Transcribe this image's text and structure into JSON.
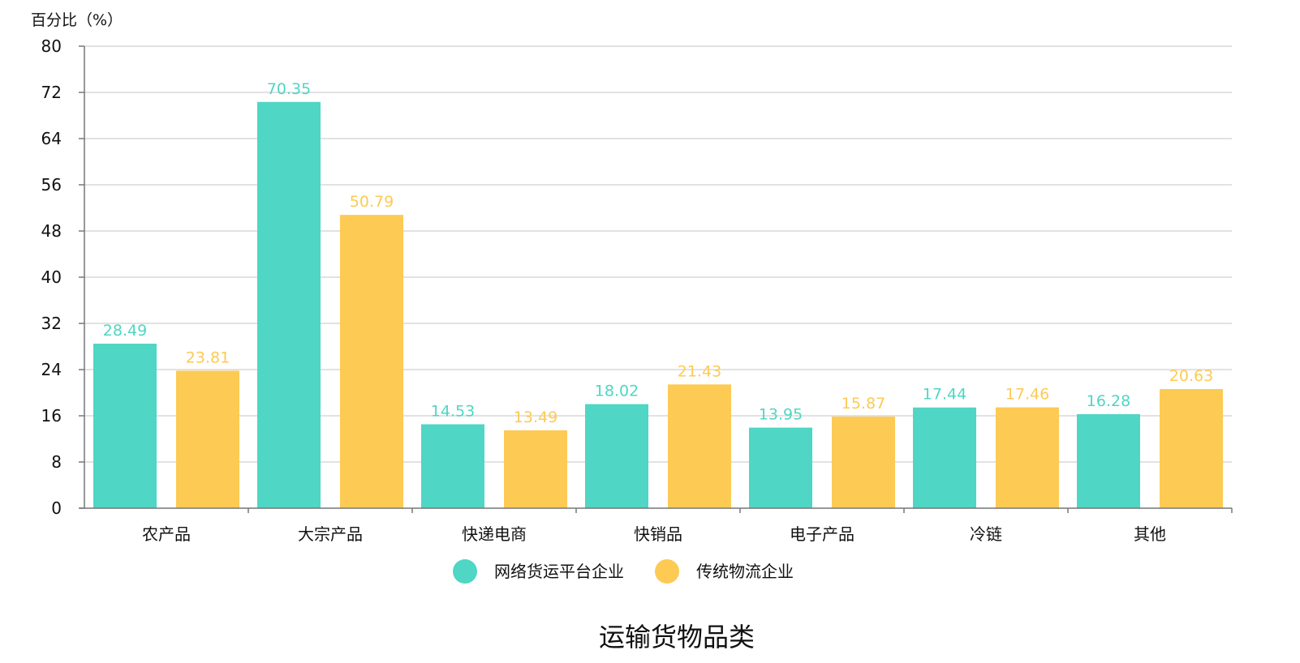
{
  "chart_data": {
    "type": "bar",
    "ylabel": "百分比（%）",
    "xlabel": "运输货物品类",
    "ylim": [
      0,
      80
    ],
    "yticks": [
      0,
      8,
      16,
      24,
      32,
      40,
      48,
      56,
      64,
      72,
      80
    ],
    "grid": true,
    "legend_position": "bottom",
    "categories": [
      "农产品",
      "大宗产品",
      "快递电商",
      "快销品",
      "电子产品",
      "冷链",
      "其他"
    ],
    "series": [
      {
        "name": "网络货运平台企业",
        "color": "#4fd6c4",
        "values": [
          28.49,
          70.35,
          14.53,
          18.02,
          13.95,
          17.44,
          16.28
        ]
      },
      {
        "name": "传统物流企业",
        "color": "#fdca54",
        "values": [
          23.81,
          50.79,
          13.49,
          21.43,
          15.87,
          17.46,
          20.63
        ]
      }
    ]
  }
}
